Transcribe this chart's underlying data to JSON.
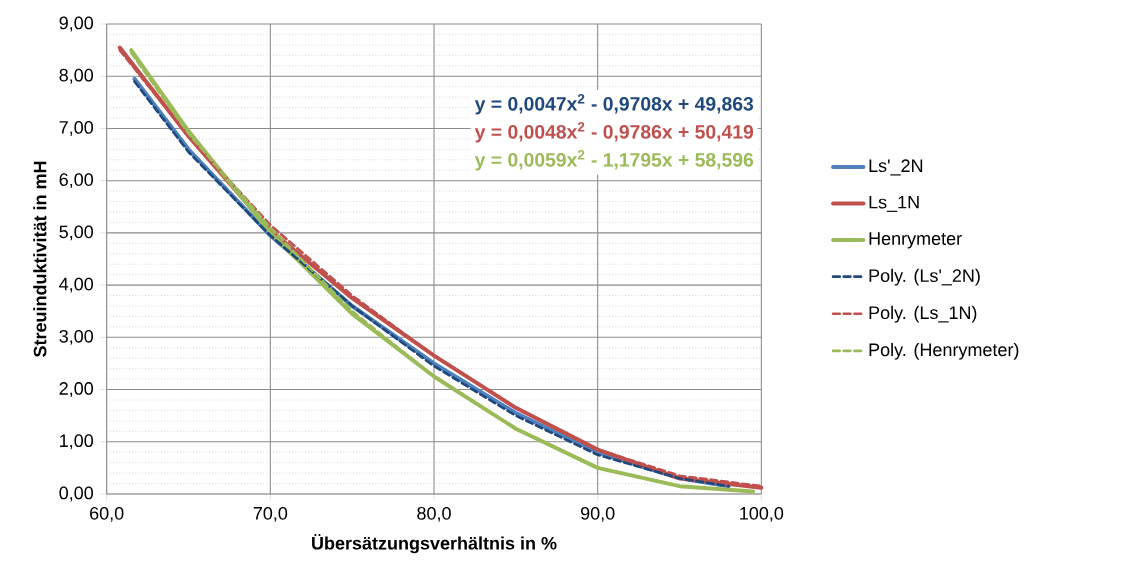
{
  "chart_data": {
    "type": "line",
    "xlabel": "Übersätzungsverhältnis in %",
    "ylabel": "Streuinduktivität in mH",
    "xlim": [
      60,
      100
    ],
    "ylim": [
      0,
      9
    ],
    "xticks": [
      {
        "value": 60,
        "label": "60,0"
      },
      {
        "value": 70,
        "label": "70,0"
      },
      {
        "value": 80,
        "label": "80,0"
      },
      {
        "value": 90,
        "label": "90,0"
      },
      {
        "value": 100,
        "label": "100,0"
      }
    ],
    "yticks": [
      {
        "value": 0,
        "label": "0,00"
      },
      {
        "value": 1,
        "label": "1,00"
      },
      {
        "value": 2,
        "label": "2,00"
      },
      {
        "value": 3,
        "label": "3,00"
      },
      {
        "value": 4,
        "label": "4,00"
      },
      {
        "value": 5,
        "label": "5,00"
      },
      {
        "value": 6,
        "label": "6,00"
      },
      {
        "value": 7,
        "label": "7,00"
      },
      {
        "value": 8,
        "label": "8,00"
      },
      {
        "value": 9,
        "label": "9,00"
      }
    ],
    "grid": true,
    "legend": "right",
    "series": [
      {
        "name": "Ls'_2N",
        "color": "#4f81bd",
        "line_style": "solid",
        "x": [
          61.7,
          65,
          70,
          75,
          80,
          85,
          90,
          95,
          98
        ],
        "values": [
          7.95,
          6.6,
          4.95,
          3.6,
          2.5,
          1.55,
          0.8,
          0.3,
          0.15
        ]
      },
      {
        "name": "Ls_1N",
        "color": "#c0504d",
        "line_style": "solid",
        "x": [
          60.8,
          65,
          70,
          75,
          80,
          85,
          90,
          95,
          100
        ],
        "values": [
          8.55,
          6.85,
          5.05,
          3.75,
          2.65,
          1.65,
          0.85,
          0.3,
          0.12
        ]
      },
      {
        "name": "Henrymeter",
        "color": "#9bbb59",
        "line_style": "solid",
        "x": [
          61.5,
          65,
          70,
          75,
          80,
          85,
          90,
          95,
          99.5
        ],
        "values": [
          8.5,
          6.95,
          5.0,
          3.45,
          2.25,
          1.25,
          0.5,
          0.15,
          0.05
        ]
      },
      {
        "name": "Poly. (Ls'_2N)",
        "color": "#1f497d",
        "line_style": "dashed",
        "x": [
          61.7,
          65,
          70,
          75,
          80,
          85,
          90,
          95,
          98
        ],
        "values": [
          7.9,
          6.55,
          4.95,
          3.6,
          2.45,
          1.5,
          0.75,
          0.3,
          0.15
        ]
      },
      {
        "name": "Poly. (Ls_1N)",
        "color": "#c0504d",
        "line_style": "dashed",
        "x": [
          60.8,
          65,
          70,
          75,
          80,
          85,
          90,
          95,
          100
        ],
        "values": [
          8.5,
          6.85,
          5.15,
          3.8,
          2.65,
          1.65,
          0.85,
          0.35,
          0.15
        ]
      },
      {
        "name": "Poly. (Henrymeter)",
        "color": "#9bbb59",
        "line_style": "dashed",
        "x": [
          61.5,
          65,
          70,
          75,
          80,
          85,
          90,
          95,
          99.5
        ],
        "values": [
          8.45,
          6.9,
          5.1,
          3.5,
          2.25,
          1.25,
          0.5,
          0.15,
          0.05
        ]
      }
    ],
    "annotations": [
      "**y = 0,0047x$^{2}$ - 0,9708x + 49,863**",
      "**y = 0,0048x$^{2}$ - 0,9786x + 50,419**",
      "**y = 0,0059x$^{2}$ - 1,1795x + 58,596**"
    ]
  }
}
